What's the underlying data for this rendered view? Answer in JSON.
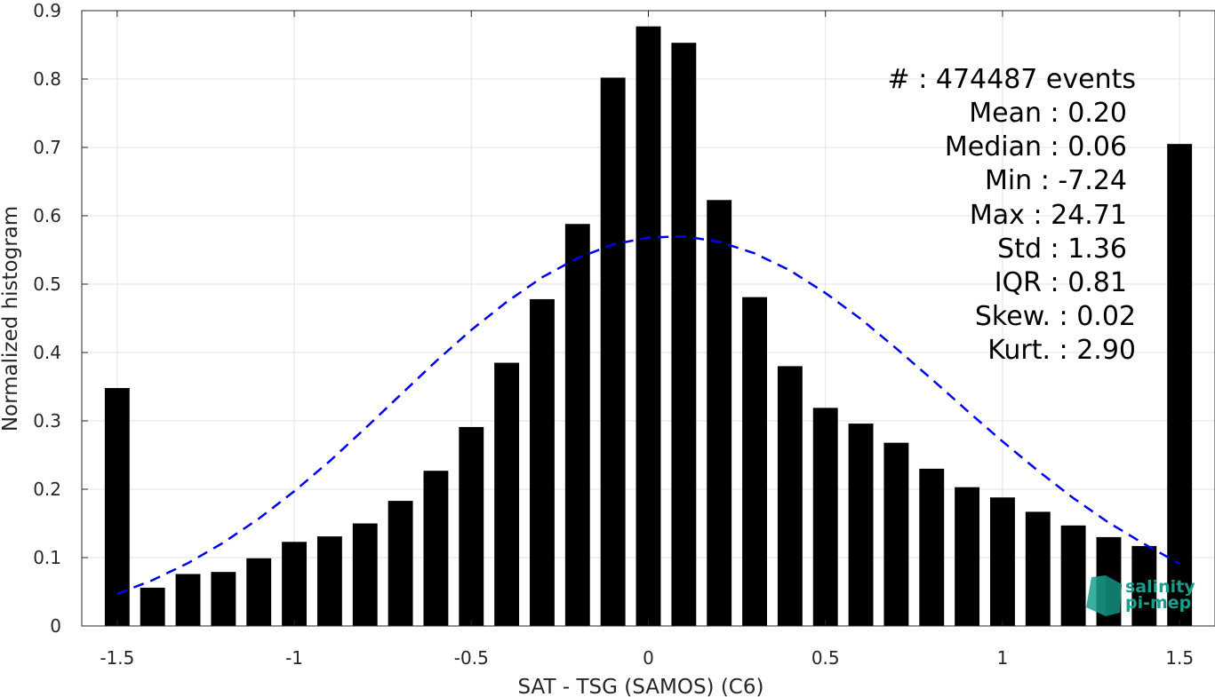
{
  "chart_data": {
    "type": "bar",
    "xlabel": "SAT - TSG (SAMOS) (C6)",
    "ylabel": "Normalized histogram",
    "xlim": [
      -1.6,
      1.6
    ],
    "ylim": [
      0,
      0.9
    ],
    "grid": true,
    "x_ticks": [
      -1.5,
      -1,
      -0.5,
      0,
      0.5,
      1,
      1.5
    ],
    "x_tick_labels": [
      "-1.5",
      "-1",
      "-0.5",
      "0",
      "0.5",
      "1",
      "1.5"
    ],
    "y_ticks": [
      0,
      0.1,
      0.2,
      0.3,
      0.4,
      0.5,
      0.6,
      0.7,
      0.8,
      0.9
    ],
    "y_tick_labels": [
      "0",
      "0.1",
      "0.2",
      "0.3",
      "0.4",
      "0.5",
      "0.6",
      "0.7",
      "0.8",
      "0.9"
    ],
    "bar_width": 0.07,
    "bar_color": "#000000",
    "bars": {
      "x": [
        -1.5,
        -1.4,
        -1.3,
        -1.2,
        -1.1,
        -1.0,
        -0.9,
        -0.8,
        -0.7,
        -0.6,
        -0.5,
        -0.4,
        -0.3,
        -0.2,
        -0.1,
        0.0,
        0.1,
        0.2,
        0.3,
        0.4,
        0.5,
        0.6,
        0.7,
        0.8,
        0.9,
        1.0,
        1.1,
        1.2,
        1.3,
        1.4,
        1.5
      ],
      "values": [
        0.348,
        0.056,
        0.076,
        0.079,
        0.099,
        0.123,
        0.131,
        0.15,
        0.183,
        0.227,
        0.291,
        0.385,
        0.478,
        0.588,
        0.802,
        0.877,
        0.853,
        0.623,
        0.481,
        0.38,
        0.319,
        0.296,
        0.268,
        0.23,
        0.203,
        0.188,
        0.167,
        0.147,
        0.13,
        0.117,
        0.705
      ]
    },
    "fit_curve": {
      "style": "dashed",
      "color": "#0000ee",
      "x": [
        -1.5,
        -1.4,
        -1.3,
        -1.2,
        -1.1,
        -1.0,
        -0.9,
        -0.8,
        -0.7,
        -0.6,
        -0.5,
        -0.4,
        -0.3,
        -0.2,
        -0.1,
        0.0,
        0.1,
        0.2,
        0.3,
        0.4,
        0.5,
        0.6,
        0.7,
        0.8,
        0.9,
        1.0,
        1.1,
        1.2,
        1.3,
        1.4,
        1.5
      ],
      "y": [
        0.047,
        0.067,
        0.092,
        0.122,
        0.157,
        0.197,
        0.241,
        0.289,
        0.338,
        0.387,
        0.433,
        0.474,
        0.51,
        0.538,
        0.558,
        0.568,
        0.57,
        0.562,
        0.545,
        0.52,
        0.487,
        0.449,
        0.406,
        0.361,
        0.315,
        0.27,
        0.227,
        0.187,
        0.151,
        0.12,
        0.091
      ]
    },
    "annotations": {
      "count": "#  : 474487 events",
      "lines": [
        "Mean : 0.20",
        "Median : 0.06",
        "Min : -7.24",
        "Max : 24.71",
        "Std : 1.36",
        "IQR : 0.81",
        "Skew. : 0.02",
        "Kurt. : 2.90"
      ]
    },
    "logo": {
      "line1": "salinity",
      "line2": "pi-mep",
      "color": "#1a9e8c"
    }
  }
}
